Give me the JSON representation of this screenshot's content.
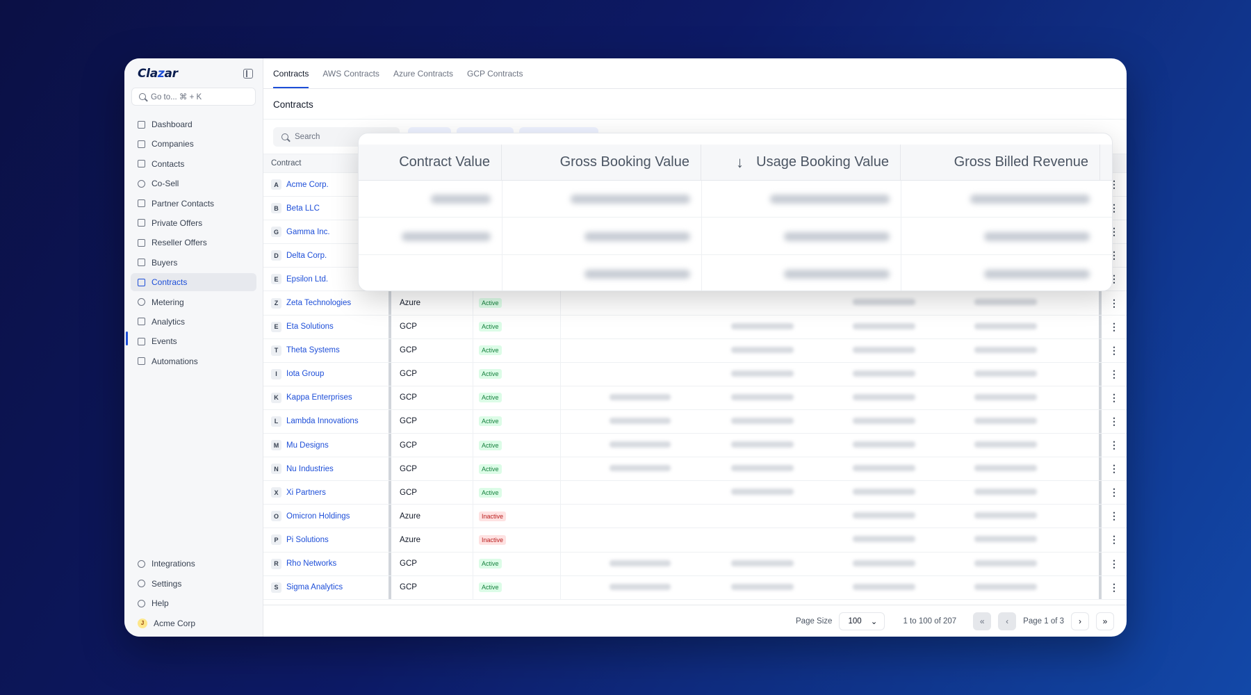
{
  "sidebar": {
    "logo_prefix": "Cla",
    "logo_z": "z",
    "logo_suffix": "ar",
    "search_placeholder": "Go to... ⌘ + K",
    "items": [
      {
        "label": "Dashboard",
        "icon": "grid-icon"
      },
      {
        "label": "Companies",
        "icon": "building-icon"
      },
      {
        "label": "Contacts",
        "icon": "contact-book-icon"
      },
      {
        "label": "Co-Sell",
        "icon": "co-sell-icon"
      },
      {
        "label": "Partner Contacts",
        "icon": "partner-contact-icon"
      },
      {
        "label": "Private Offers",
        "icon": "tag-icon"
      },
      {
        "label": "Reseller Offers",
        "icon": "reseller-icon"
      },
      {
        "label": "Buyers",
        "icon": "users-icon"
      },
      {
        "label": "Contracts",
        "icon": "contract-icon",
        "active": true
      },
      {
        "label": "Metering",
        "icon": "gauge-icon"
      },
      {
        "label": "Analytics",
        "icon": "chart-icon"
      },
      {
        "label": "Events",
        "icon": "calendar-icon"
      },
      {
        "label": "Automations",
        "icon": "automation-icon"
      }
    ],
    "bottom": [
      {
        "label": "Integrations",
        "icon": "plug-icon"
      },
      {
        "label": "Settings",
        "icon": "gear-icon"
      },
      {
        "label": "Help",
        "icon": "help-icon"
      }
    ],
    "account": {
      "initial": "J",
      "label": "Acme Corp"
    }
  },
  "tabs": [
    "Contracts",
    "AWS Contracts",
    "Azure Contracts",
    "GCP Contracts"
  ],
  "page_title": "Contracts",
  "toolbar": {
    "search_placeholder": "Search"
  },
  "table": {
    "first_column_header": "Contract",
    "rows": [
      {
        "letter": "A",
        "name": "Acme Corp.",
        "cloud": "",
        "status": ""
      },
      {
        "letter": "B",
        "name": "Beta LLC",
        "cloud": "",
        "status": ""
      },
      {
        "letter": "G",
        "name": "Gamma Inc.",
        "cloud": "",
        "status": ""
      },
      {
        "letter": "D",
        "name": "Delta Corp.",
        "cloud": "",
        "status": ""
      },
      {
        "letter": "E",
        "name": "Epsilon Ltd.",
        "cloud": "",
        "status": ""
      },
      {
        "letter": "Z",
        "name": "Zeta Technologies",
        "cloud": "Azure",
        "status": "Active"
      },
      {
        "letter": "E",
        "name": "Eta Solutions",
        "cloud": "GCP",
        "status": "Active"
      },
      {
        "letter": "T",
        "name": "Theta Systems",
        "cloud": "GCP",
        "status": "Active"
      },
      {
        "letter": "I",
        "name": "Iota Group",
        "cloud": "GCP",
        "status": "Active"
      },
      {
        "letter": "K",
        "name": "Kappa Enterprises",
        "cloud": "GCP",
        "status": "Active"
      },
      {
        "letter": "L",
        "name": "Lambda Innovations",
        "cloud": "GCP",
        "status": "Active"
      },
      {
        "letter": "M",
        "name": "Mu Designs",
        "cloud": "GCP",
        "status": "Active"
      },
      {
        "letter": "N",
        "name": "Nu Industries",
        "cloud": "GCP",
        "status": "Active"
      },
      {
        "letter": "X",
        "name": "Xi Partners",
        "cloud": "GCP",
        "status": "Active"
      },
      {
        "letter": "O",
        "name": "Omicron Holdings",
        "cloud": "Azure",
        "status": "Inactive"
      },
      {
        "letter": "P",
        "name": "Pi Solutions",
        "cloud": "Azure",
        "status": "Inactive"
      },
      {
        "letter": "R",
        "name": "Rho Networks",
        "cloud": "GCP",
        "status": "Active"
      },
      {
        "letter": "S",
        "name": "Sigma Analytics",
        "cloud": "GCP",
        "status": "Active"
      }
    ]
  },
  "overlay": {
    "columns": [
      "Contract Value",
      "Gross Booking Value",
      "Usage Booking Value",
      "Gross Billed Revenue"
    ],
    "sorted_column": "Usage Booking Value",
    "sort_icon": "arrow-down-icon"
  },
  "pagination": {
    "page_size_label": "Page Size",
    "page_size": "100",
    "range": "1 to 100 of 207",
    "page": "Page 1 of 3"
  },
  "colors": {
    "accent": "#1d4ed8",
    "active_badge": "#15803d",
    "inactive_badge": "#b91c1c"
  }
}
